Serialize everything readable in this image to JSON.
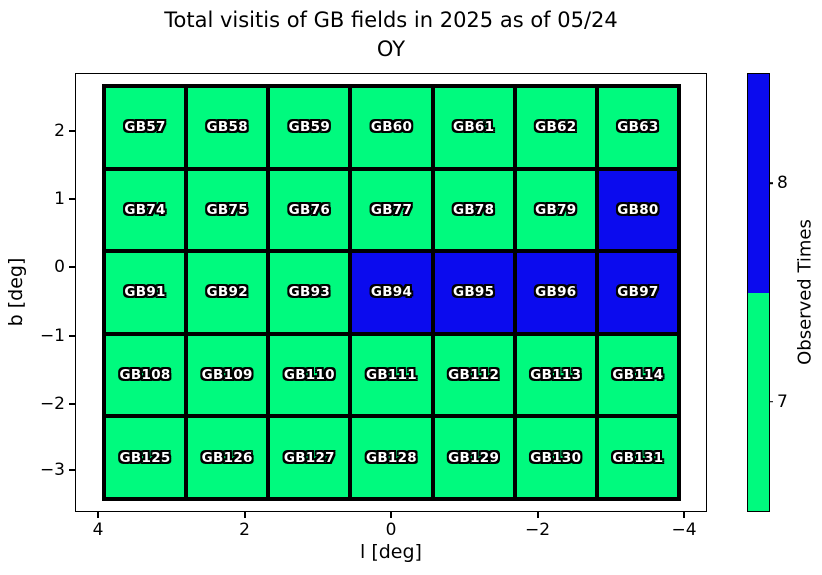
{
  "title": {
    "line1": "Total visitis of GB fields in 2025 as of 05/24",
    "line2": "OY"
  },
  "axes": {
    "xlabel": "l [deg]",
    "ylabel": "b [deg]",
    "x_tick_labels": [
      "4",
      "2",
      "0",
      "−2",
      "−4"
    ],
    "y_tick_labels": [
      "2",
      "1",
      "0",
      "−1",
      "−2",
      "−3"
    ]
  },
  "colorbar": {
    "label": "Observed Times",
    "tick_labels": [
      "8",
      "7"
    ],
    "segment_colors_top_to_bottom": [
      "#0b0bee",
      "#00fa7e"
    ]
  },
  "chart_data": {
    "type": "heatmap",
    "title": "Total visitis of GB fields in 2025 as of 05/24 OY",
    "xlabel": "l [deg]",
    "ylabel": "b [deg]",
    "x_ticks": [
      4,
      2,
      0,
      -2,
      -4
    ],
    "y_ticks": [
      2,
      1,
      0,
      -1,
      -2,
      -3
    ],
    "x_axis_inverted": true,
    "colorbar_label": "Observed Times",
    "colorbar_ticks": [
      8,
      7
    ],
    "value_colors": {
      "7": "#00fa7e",
      "8": "#0b0bee"
    },
    "grid_border_color": "#000000",
    "rows": [
      [
        {
          "label": "GB57",
          "value": 7
        },
        {
          "label": "GB58",
          "value": 7
        },
        {
          "label": "GB59",
          "value": 7
        },
        {
          "label": "GB60",
          "value": 7
        },
        {
          "label": "GB61",
          "value": 7
        },
        {
          "label": "GB62",
          "value": 7
        },
        {
          "label": "GB63",
          "value": 7
        }
      ],
      [
        {
          "label": "GB74",
          "value": 7
        },
        {
          "label": "GB75",
          "value": 7
        },
        {
          "label": "GB76",
          "value": 7
        },
        {
          "label": "GB77",
          "value": 7
        },
        {
          "label": "GB78",
          "value": 7
        },
        {
          "label": "GB79",
          "value": 7
        },
        {
          "label": "GB80",
          "value": 8
        }
      ],
      [
        {
          "label": "GB91",
          "value": 7
        },
        {
          "label": "GB92",
          "value": 7
        },
        {
          "label": "GB93",
          "value": 7
        },
        {
          "label": "GB94",
          "value": 8
        },
        {
          "label": "GB95",
          "value": 8
        },
        {
          "label": "GB96",
          "value": 8
        },
        {
          "label": "GB97",
          "value": 8
        }
      ],
      [
        {
          "label": "GB108",
          "value": 7
        },
        {
          "label": "GB109",
          "value": 7
        },
        {
          "label": "GB110",
          "value": 7
        },
        {
          "label": "GB111",
          "value": 7
        },
        {
          "label": "GB112",
          "value": 7
        },
        {
          "label": "GB113",
          "value": 7
        },
        {
          "label": "GB114",
          "value": 7
        }
      ],
      [
        {
          "label": "GB125",
          "value": 7
        },
        {
          "label": "GB126",
          "value": 7
        },
        {
          "label": "GB127",
          "value": 7
        },
        {
          "label": "GB128",
          "value": 7
        },
        {
          "label": "GB129",
          "value": 7
        },
        {
          "label": "GB130",
          "value": 7
        },
        {
          "label": "GB131",
          "value": 7
        }
      ]
    ]
  }
}
